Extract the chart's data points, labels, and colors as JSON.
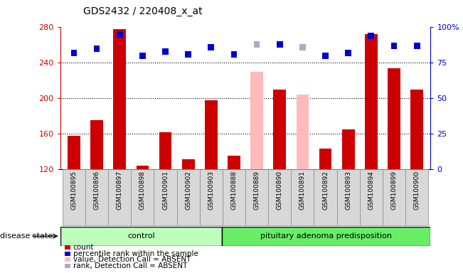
{
  "title": "GDS2432 / 220408_x_at",
  "samples": [
    "GSM100895",
    "GSM100896",
    "GSM100897",
    "GSM100898",
    "GSM100901",
    "GSM100902",
    "GSM100903",
    "GSM100888",
    "GSM100889",
    "GSM100890",
    "GSM100891",
    "GSM100892",
    "GSM100893",
    "GSM100894",
    "GSM100899",
    "GSM100900"
  ],
  "bar_values": [
    158,
    175,
    278,
    124,
    162,
    131,
    198,
    135,
    230,
    210,
    204,
    143,
    165,
    272,
    234,
    210
  ],
  "bar_colors": [
    "#cc0000",
    "#cc0000",
    "#cc0000",
    "#cc0000",
    "#cc0000",
    "#cc0000",
    "#cc0000",
    "#cc0000",
    "#ffbbbb",
    "#cc0000",
    "#ffbbbb",
    "#cc0000",
    "#cc0000",
    "#cc0000",
    "#cc0000",
    "#cc0000"
  ],
  "dot_values": [
    82,
    85,
    95,
    80,
    83,
    81,
    86,
    81,
    88,
    88,
    86,
    80,
    82,
    94,
    87,
    87
  ],
  "dot_colors": [
    "#0000cc",
    "#0000cc",
    "#0000cc",
    "#0000cc",
    "#0000cc",
    "#0000cc",
    "#0000cc",
    "#0000cc",
    "#aaaacc",
    "#0000cc",
    "#aaaacc",
    "#0000cc",
    "#0000cc",
    "#0000cc",
    "#0000cc",
    "#0000cc"
  ],
  "ylim_left": [
    120,
    280
  ],
  "ylim_right": [
    0,
    100
  ],
  "yticks_left": [
    120,
    160,
    200,
    240,
    280
  ],
  "yticks_right": [
    0,
    25,
    50,
    75,
    100
  ],
  "ytick_labels_right": [
    "0",
    "25",
    "50",
    "75",
    "100%"
  ],
  "control_count": 7,
  "group1_label": "control",
  "group2_label": "pituitary adenoma predisposition",
  "disease_state_label": "disease state",
  "legend_items": [
    {
      "label": "count",
      "color": "#cc0000"
    },
    {
      "label": "percentile rank within the sample",
      "color": "#0000cc"
    },
    {
      "label": "value, Detection Call = ABSENT",
      "color": "#ffbbbb"
    },
    {
      "label": "rank, Detection Call = ABSENT",
      "color": "#aaaacc"
    }
  ],
  "bar_width": 0.55,
  "dot_size": 40,
  "hline_dotted_values": [
    160,
    200,
    240
  ],
  "background_color": "#ffffff",
  "plot_bg_color": "#ffffff",
  "xtick_bg_color": "#d8d8d8"
}
